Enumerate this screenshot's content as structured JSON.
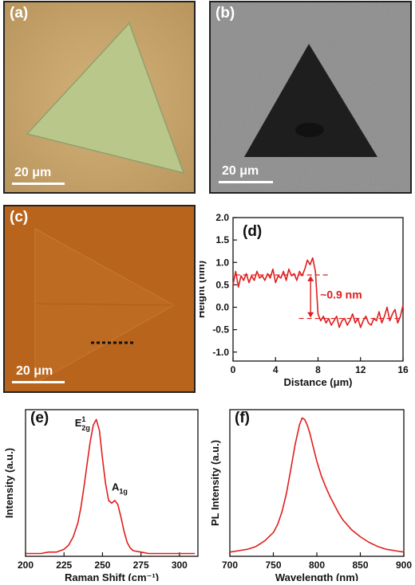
{
  "panels": {
    "a": {
      "label": "(a)",
      "scale_label": "20 μm"
    },
    "b": {
      "label": "(b)",
      "scale_label": "20 μm"
    },
    "c": {
      "label": "(c)",
      "scale_label": "20 μm"
    },
    "d": {
      "label": "(d)",
      "annotation": "~0.9 nm"
    },
    "e": {
      "label": "(e)",
      "peak1_main": "E",
      "peak1_sup": "1",
      "peak1_sub": "2g",
      "peak2_main": "A",
      "peak2_sub": "1g"
    },
    "f": {
      "label": "(f)"
    }
  },
  "colors": {
    "curve": "#e11d1d",
    "optical_bg": "#c9a66b",
    "sem_bg": "#8a8a8a",
    "afm_bg": "#b5651d"
  },
  "chart_data": [
    {
      "id": "d",
      "type": "line",
      "xlabel": "Distance (μm)",
      "ylabel": "Height (nm)",
      "xlim": [
        0,
        16
      ],
      "ylim": [
        -1.2,
        2.0
      ],
      "xticks": [
        0,
        4,
        8,
        12,
        16
      ],
      "yticks": [
        -1.0,
        -0.5,
        0.0,
        0.5,
        1.0,
        1.5,
        2.0
      ],
      "ytick_labels": [
        "-1.0",
        "-0.5",
        "0.0",
        "0.5",
        "1.0",
        "1.5",
        "2.0"
      ],
      "x": [
        0,
        0.25,
        0.5,
        0.75,
        1,
        1.25,
        1.5,
        1.75,
        2,
        2.25,
        2.5,
        2.75,
        3,
        3.25,
        3.5,
        3.75,
        4,
        4.25,
        4.5,
        4.75,
        5,
        5.25,
        5.5,
        5.75,
        6,
        6.25,
        6.5,
        6.75,
        7,
        7.25,
        7.5,
        7.75,
        8,
        8.25,
        8.5,
        8.75,
        9,
        9.25,
        9.5,
        9.75,
        10,
        10.25,
        10.5,
        10.75,
        11,
        11.25,
        11.5,
        11.75,
        12,
        12.25,
        12.5,
        12.75,
        13,
        13.25,
        13.5,
        13.75,
        14,
        14.25,
        14.5,
        14.75,
        15,
        15.25,
        15.5,
        15.75,
        16
      ],
      "y": [
        0.5,
        0.8,
        0.45,
        0.7,
        0.6,
        0.75,
        0.55,
        0.7,
        0.6,
        0.8,
        0.65,
        0.7,
        0.6,
        0.75,
        0.65,
        0.85,
        0.55,
        0.7,
        0.65,
        0.8,
        0.6,
        0.85,
        0.7,
        0.75,
        0.6,
        0.8,
        0.7,
        0.85,
        1.05,
        0.95,
        1.1,
        0.8,
        -0.15,
        -0.3,
        -0.2,
        -0.35,
        -0.25,
        -0.4,
        -0.3,
        -0.2,
        -0.45,
        -0.3,
        -0.25,
        -0.4,
        -0.3,
        -0.15,
        -0.35,
        -0.25,
        -0.45,
        -0.3,
        -0.2,
        -0.35,
        -0.4,
        -0.25,
        -0.3,
        -0.1,
        -0.35,
        -0.2,
        0.0,
        -0.3,
        -0.15,
        -0.05,
        -0.35,
        -0.2,
        0.05
      ]
    },
    {
      "id": "e",
      "type": "line",
      "xlabel": "Raman Shift (cm⁻¹)",
      "ylabel": "Intensity (a.u.)",
      "xlim": [
        200,
        312
      ],
      "ylim": [
        0,
        1.05
      ],
      "xticks": [
        200,
        225,
        250,
        275,
        300
      ],
      "x": [
        200,
        205,
        210,
        215,
        220,
        225,
        228,
        231,
        234,
        236,
        238,
        240,
        242,
        244,
        246,
        248,
        250,
        252,
        254,
        256,
        258,
        260,
        262,
        264,
        266,
        268,
        270,
        275,
        280,
        285,
        290,
        295,
        300,
        305,
        310
      ],
      "y": [
        0.02,
        0.02,
        0.02,
        0.03,
        0.03,
        0.05,
        0.08,
        0.14,
        0.24,
        0.35,
        0.5,
        0.66,
        0.82,
        0.94,
        0.98,
        0.9,
        0.7,
        0.52,
        0.4,
        0.38,
        0.4,
        0.37,
        0.28,
        0.18,
        0.1,
        0.06,
        0.04,
        0.03,
        0.02,
        0.02,
        0.02,
        0.02,
        0.02,
        0.02,
        0.02
      ]
    },
    {
      "id": "f",
      "type": "line",
      "xlabel": "Wavelength (nm)",
      "ylabel": "PL Intensity (a.u.)",
      "xlim": [
        700,
        900
      ],
      "ylim": [
        0,
        1.05
      ],
      "xticks": [
        700,
        750,
        800,
        850,
        900
      ],
      "x": [
        700,
        710,
        720,
        730,
        740,
        750,
        755,
        760,
        765,
        770,
        775,
        780,
        783,
        786,
        789,
        792,
        796,
        800,
        805,
        810,
        815,
        820,
        825,
        830,
        840,
        850,
        860,
        870,
        880,
        890,
        900
      ],
      "y": [
        0.03,
        0.04,
        0.05,
        0.07,
        0.11,
        0.17,
        0.23,
        0.32,
        0.45,
        0.62,
        0.8,
        0.94,
        0.99,
        0.98,
        0.94,
        0.88,
        0.78,
        0.68,
        0.58,
        0.5,
        0.43,
        0.37,
        0.31,
        0.26,
        0.19,
        0.14,
        0.1,
        0.07,
        0.05,
        0.04,
        0.03
      ]
    }
  ]
}
